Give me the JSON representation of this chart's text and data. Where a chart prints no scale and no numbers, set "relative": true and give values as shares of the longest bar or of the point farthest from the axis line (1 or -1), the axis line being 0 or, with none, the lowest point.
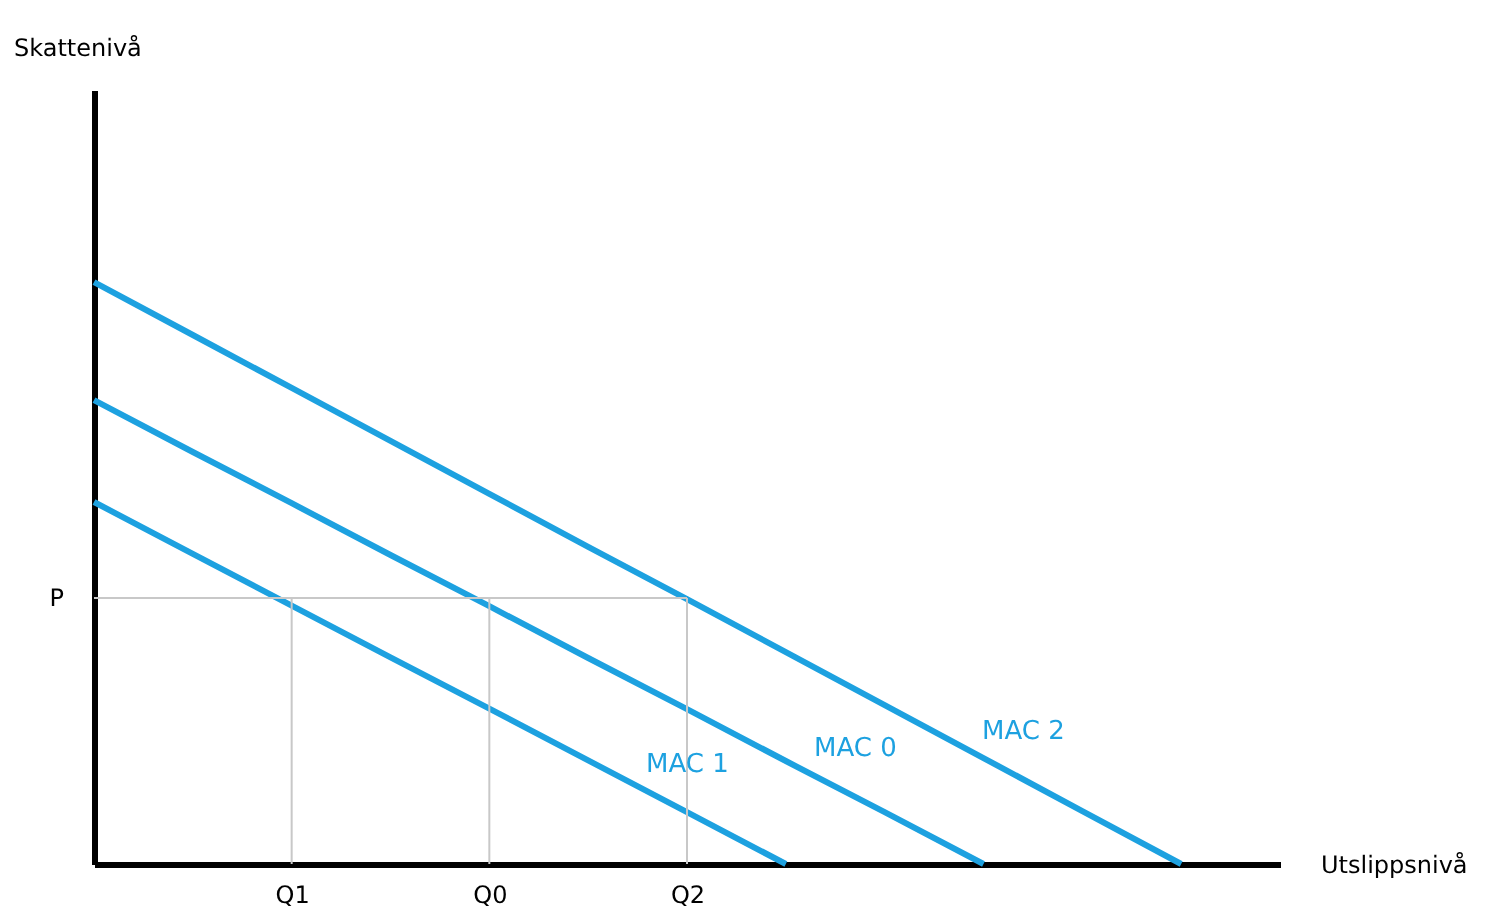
{
  "chart_data": {
    "type": "line",
    "relative": true,
    "xlabel": "Utslippsnivå",
    "annotations": [
      "Skattenivå"
    ],
    "categories": [
      null,
      null,
      "Q1",
      null,
      "Q0",
      null,
      "Q2",
      null,
      null,
      null,
      null,
      null,
      null
    ],
    "marker": "none",
    "line_style": "solid",
    "ref_lines": [
      {
        "axis": "y",
        "value": 0.457,
        "label": "P",
        "color": "#c8c8c8"
      },
      {
        "axis": "x",
        "value": "Q1",
        "color": "#c8c8c8"
      },
      {
        "axis": "x",
        "value": "Q0",
        "color": "#c8c8c8"
      },
      {
        "axis": "x",
        "value": "Q2",
        "color": "#c8c8c8"
      }
    ],
    "series": [
      {
        "name": "MAC 2",
        "color": "#1da1e0",
        "values": [
          1,
          0.909,
          0.818,
          0.727,
          0.636,
          0.545,
          0.455,
          0.364,
          0.273,
          0.182,
          0.091,
          0,
          null
        ]
      },
      {
        "name": "MAC 0",
        "color": "#1da1e0",
        "values": [
          0.797,
          0.708,
          0.62,
          0.531,
          0.443,
          0.354,
          0.266,
          0.177,
          0.089,
          0,
          null,
          null,
          null
        ]
      },
      {
        "name": "MAC 1",
        "color": "#1da1e0",
        "values": [
          0.622,
          0.533,
          0.444,
          0.355,
          0.267,
          0.178,
          0.089,
          0,
          null,
          null,
          null,
          null,
          null
        ]
      }
    ]
  }
}
